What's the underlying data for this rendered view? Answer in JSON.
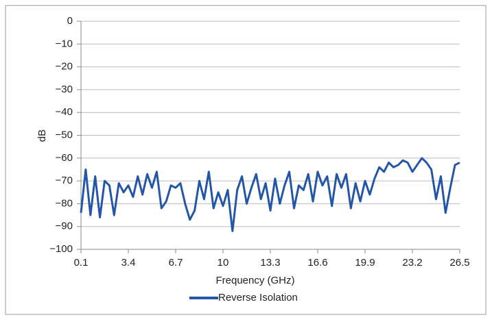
{
  "chart_data": {
    "type": "line",
    "x_label": "Frequency (GHz)",
    "y_label": "dB",
    "x": [
      0.1,
      0.43,
      0.76,
      1.09,
      1.42,
      1.75,
      2.08,
      2.41,
      2.74,
      3.07,
      3.4,
      3.73,
      4.06,
      4.39,
      4.72,
      5.05,
      5.38,
      5.71,
      6.04,
      6.37,
      6.7,
      7.03,
      7.36,
      7.69,
      8.02,
      8.35,
      8.68,
      9.01,
      9.34,
      9.67,
      10,
      10.33,
      10.66,
      10.99,
      11.32,
      11.65,
      11.98,
      12.31,
      12.64,
      12.97,
      13.3,
      13.63,
      13.96,
      14.29,
      14.62,
      14.95,
      15.28,
      15.61,
      15.94,
      16.27,
      16.6,
      16.93,
      17.26,
      17.59,
      17.92,
      18.25,
      18.58,
      18.91,
      19.24,
      19.57,
      19.9,
      20.23,
      20.56,
      20.89,
      21.22,
      21.55,
      21.88,
      22.21,
      22.54,
      22.87,
      23.2,
      23.53,
      23.86,
      24.19,
      24.52,
      24.85,
      25.18,
      25.51,
      25.84,
      26.17,
      26.5
    ],
    "series": [
      {
        "name": "Reverse Isolation",
        "color": "#2356a6",
        "values": [
          -84,
          -65,
          -85,
          -68,
          -86,
          -70,
          -72,
          -85,
          -71,
          -75,
          -72,
          -77,
          -68,
          -76,
          -67,
          -73,
          -66,
          -82,
          -79,
          -72,
          -73,
          -71,
          -80,
          -87,
          -83,
          -70,
          -78,
          -66,
          -82,
          -75,
          -81,
          -74,
          -92,
          -74,
          -68,
          -80,
          -73,
          -67,
          -78,
          -71,
          -83,
          -69,
          -80,
          -72,
          -66,
          -82,
          -72,
          -74,
          -67,
          -79,
          -66,
          -72,
          -68,
          -81,
          -67,
          -73,
          -67,
          -82,
          -71,
          -79,
          -70,
          -76,
          -69,
          -64,
          -66,
          -62,
          -64,
          -63,
          -61,
          -62,
          -66,
          -63,
          -60,
          -62,
          -65,
          -78,
          -68,
          -84,
          -73,
          -63,
          -62
        ]
      }
    ],
    "xlim": [
      0.1,
      26.5
    ],
    "xticks": [
      0.1,
      3.4,
      6.7,
      10,
      13.3,
      16.6,
      19.9,
      23.2,
      26.5
    ],
    "ylim": [
      -100,
      0
    ],
    "yticks": [
      {
        "value": -100,
        "label": "−100"
      },
      {
        "value": -90,
        "label": "−90"
      },
      {
        "value": -80,
        "label": "−80"
      },
      {
        "value": -70,
        "label": "−70"
      },
      {
        "value": -60,
        "label": "−60"
      },
      {
        "value": -50,
        "label": "−50"
      },
      {
        "value": -40,
        "label": "−40"
      },
      {
        "value": -30,
        "label": "−30"
      },
      {
        "value": -20,
        "label": "−20"
      },
      {
        "value": -10,
        "label": "−10"
      },
      0
    ],
    "grid": true
  }
}
